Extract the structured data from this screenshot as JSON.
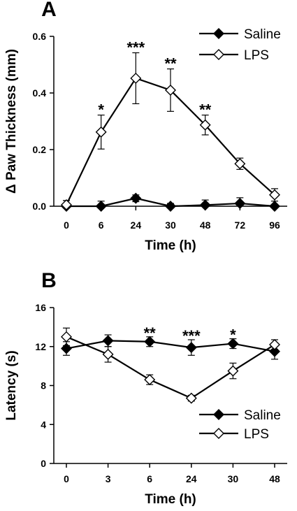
{
  "chart_data": [
    {
      "panel": "A",
      "type": "line",
      "xlabel": "Time (h)",
      "ylabel": "Δ Paw Thickness (mm)",
      "categories": [
        "0",
        "6",
        "24",
        "30",
        "48",
        "72",
        "96"
      ],
      "ylim": [
        0,
        0.6
      ],
      "yticks": [
        "0.0",
        "0.2",
        "0.4",
        "0.6"
      ],
      "legend_position": "top-right",
      "series": [
        {
          "name": "Saline",
          "marker": "filled-diamond",
          "values": [
            0.0,
            0.0,
            0.028,
            0.0,
            0.004,
            0.01,
            0.0
          ],
          "errors": [
            0.02,
            0.018,
            0.012,
            0.01,
            0.018,
            0.02,
            0.0
          ]
        },
        {
          "name": "LPS",
          "marker": "open-diamond",
          "values": [
            0.005,
            0.262,
            0.452,
            0.41,
            0.287,
            0.15,
            0.04
          ],
          "errors": [
            0.015,
            0.06,
            0.09,
            0.075,
            0.035,
            0.02,
            0.022
          ]
        }
      ],
      "annotations": [
        {
          "category": "6",
          "text": "*"
        },
        {
          "category": "24",
          "text": "***"
        },
        {
          "category": "30",
          "text": "**"
        },
        {
          "category": "48",
          "text": "**"
        }
      ]
    },
    {
      "panel": "B",
      "type": "line",
      "xlabel": "Time (h)",
      "ylabel": "Latency (s)",
      "categories": [
        "0",
        "3",
        "6",
        "24",
        "30",
        "48"
      ],
      "ylim": [
        0,
        16
      ],
      "yticks": [
        "0",
        "4",
        "8",
        "12",
        "16"
      ],
      "legend_position": "bottom-right",
      "series": [
        {
          "name": "Saline",
          "marker": "filled-diamond",
          "values": [
            11.8,
            12.6,
            12.5,
            11.9,
            12.3,
            11.5
          ],
          "errors": [
            0.7,
            0.6,
            0.5,
            0.8,
            0.5,
            0.8
          ]
        },
        {
          "name": "LPS",
          "marker": "open-diamond",
          "values": [
            13.0,
            11.2,
            8.6,
            6.7,
            9.5,
            12.2
          ],
          "errors": [
            0.9,
            0.8,
            0.5,
            0.3,
            0.8,
            0.5
          ]
        }
      ],
      "annotations": [
        {
          "category": "6",
          "text": "**"
        },
        {
          "category": "24",
          "text": "***"
        },
        {
          "category": "30",
          "text": "*"
        }
      ]
    }
  ]
}
